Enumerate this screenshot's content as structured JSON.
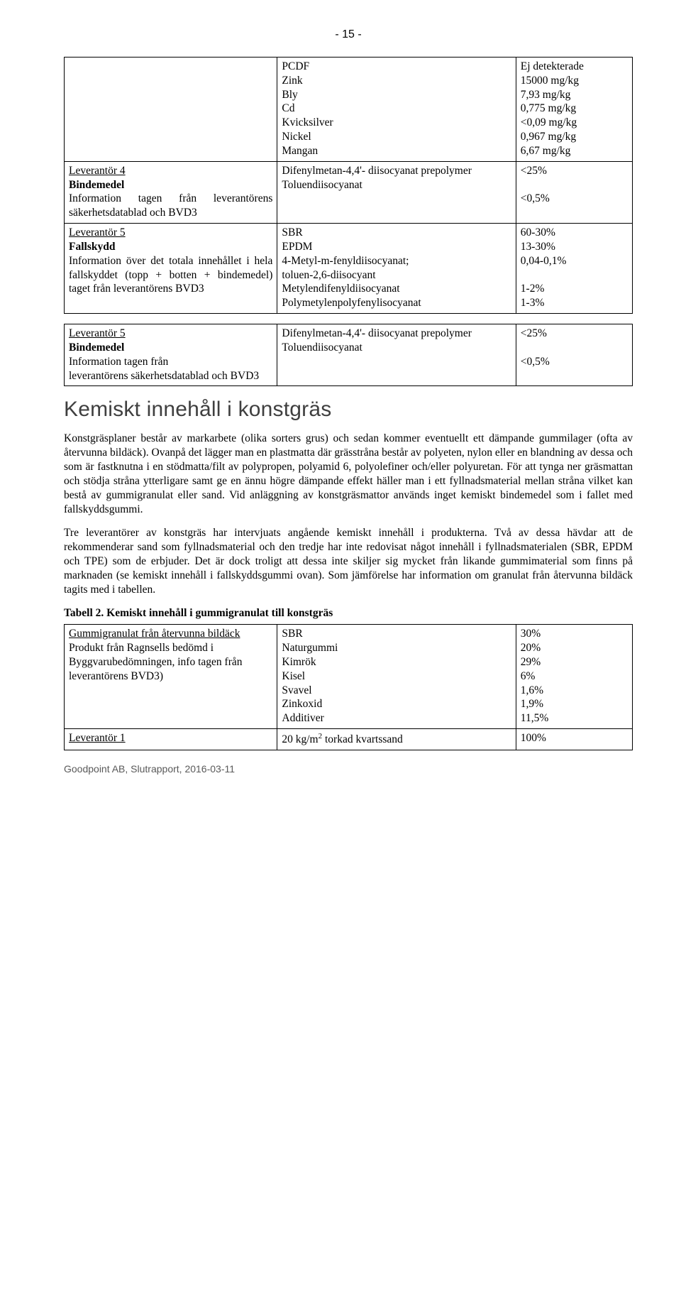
{
  "pageNumber": "- 15 -",
  "colors": {
    "body_text": "#000000",
    "heading_text": "#3f3f3f",
    "footer_text": "#595959",
    "border": "#000000",
    "background": "#ffffff"
  },
  "fonts": {
    "body_family": "Georgia, Times New Roman, serif",
    "heading_family": "Trebuchet MS, Segoe UI, Arial, sans-serif",
    "body_size_pt": 12,
    "heading_size_pt": 22,
    "footer_size_pt": 10
  },
  "table1": {
    "rows": [
      {
        "c1_html": "",
        "c2_lines": [
          "PCDF",
          "Zink",
          "Bly",
          "Cd",
          "Kvicksilver",
          "Nickel",
          "Mangan"
        ],
        "c3_lines": [
          "Ej detekterade",
          "15000 mg/kg",
          "7,93 mg/kg",
          "0,775 mg/kg",
          "<0,09 mg/kg",
          "0,967 mg/kg",
          "6,67 mg/kg"
        ]
      },
      {
        "c1_html": "<span class=\"u\">Leverantör 4</span><br><b>Bindemedel</b><br>Information tagen från leverantörens säkerhetsdatablad och BVD3",
        "c2_lines": [
          "Difenylmetan-4,4'- diisocyanat prepolymer",
          "Toluendiisocyanat"
        ],
        "c3_lines": [
          "<25%",
          "",
          "<0,5%"
        ]
      },
      {
        "c1_html": "<span class=\"u\">Leverantör 5</span><br><b>Fallskydd</b><br>Information över det totala innehållet i hela fallskyddet (topp + botten + bindemedel) taget från leverantörens BVD3",
        "c2_lines": [
          "SBR",
          "EPDM",
          "4-Metyl-m-fenyldiisocyanat;",
          "toluen-2,6-diisocyant",
          "Metylendifenyldiisocyanat",
          "Polymetylenpolyfenylisocyanat"
        ],
        "c3_lines": [
          "60-30%",
          "13-30%",
          "0,04-0,1%",
          "",
          "1-2%",
          "1-3%"
        ]
      },
      {
        "c1_html": "<span class=\"u\">Leverantör 5</span><br><b>Bindemedel</b><br>Information tagen från<br>leverantörens säkerhetsdatablad och BVD3",
        "c2_lines": [
          "Difenylmetan-4,4'- diisocyanat prepolymer",
          "Toluendiisocyanat"
        ],
        "c3_lines": [
          "<25%",
          "",
          "<0,5%"
        ]
      }
    ]
  },
  "heading": "Kemiskt innehåll i konstgräs",
  "para1": "Konstgräsplaner består av markarbete (olika sorters grus) och sedan kommer eventuellt ett dämpande gummilager (ofta av återvunna bildäck). Ovanpå det lägger man en plastmatta där grässtråna består av polyeten, nylon eller en blandning av dessa och som är fastknutna i en stödmatta/filt av polypropen, polyamid 6, polyolefiner och/eller polyuretan. För att tynga ner gräsmattan och stödja stråna ytterligare samt ge en ännu högre dämpande effekt häller man i ett fyllnadsmaterial mellan stråna vilket kan bestå av gummigranulat eller sand. Vid anläggning av konstgräsmattor används inget kemiskt bindemedel som i fallet med fallskyddsgummi.",
  "para2": "Tre leverantörer av konstgräs har intervjuats angående kemiskt innehåll i produkterna. Två av dessa hävdar att de rekommenderar sand som fyllnadsmaterial och den tredje har inte redovisat något innehåll i fyllnadsmaterialen (SBR, EPDM och TPE) som de erbjuder. Det är dock troligt att dessa inte skiljer sig mycket från likande gummimaterial som finns på marknaden (se kemiskt innehåll i fallskyddsgummi ovan). Som jämförelse har information om granulat från återvunna bildäck tagits med i tabellen.",
  "tableCaption": "Tabell 2. Kemiskt innehåll i gummigranulat till konstgräs",
  "table2": {
    "rows": [
      {
        "c1_html": "<span class=\"u\">Gummigranulat från återvunna bildäck</span><br>Produkt från Ragnsells bedömd i Byggvarubedömningen, info tagen från leverantörens BVD3)",
        "c2_lines": [
          "SBR",
          "Naturgummi",
          "Kimrök",
          "Kisel",
          "Svavel",
          "Zinkoxid",
          "Additiver"
        ],
        "c3_lines": [
          "30%",
          "20%",
          "29%",
          "6%",
          "1,6%",
          "1,9%",
          "11,5%"
        ]
      },
      {
        "c1_html": "<span class=\"u\">Leverantör 1</span>",
        "c2_lines": [
          "20 kg/m<span class=\"sub\">2</span> torkad kvartssand"
        ],
        "c3_lines": [
          "100%"
        ]
      }
    ]
  },
  "footer": "Goodpoint AB, Slutrapport, 2016-03-11"
}
